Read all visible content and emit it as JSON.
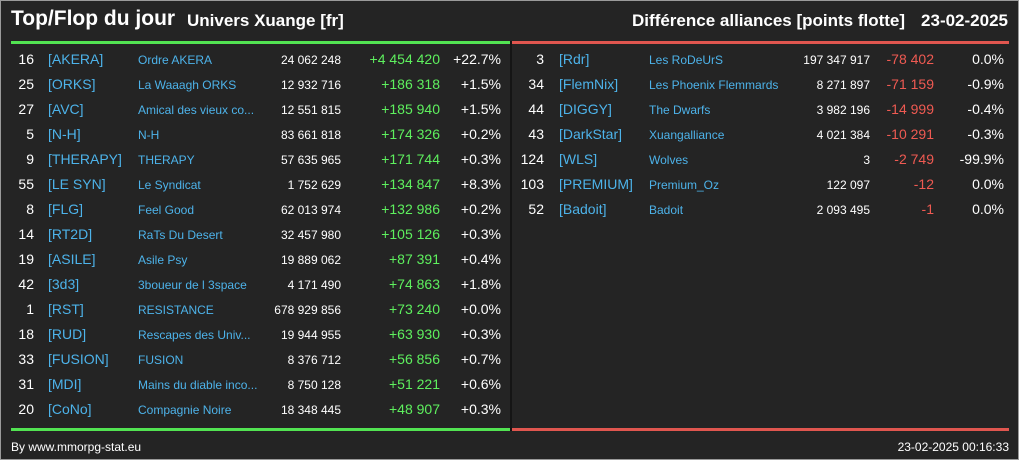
{
  "header": {
    "title": "Top/Flop du jour",
    "universe": "Univers Xuange [fr]",
    "subtitle": "Différence alliances [points flotte]",
    "date": "23-02-2025"
  },
  "top": [
    {
      "rank": "16",
      "tag": "[AKERA]",
      "name": "Ordre AKERA",
      "points": "24 062 248",
      "diff": "+4 454 420",
      "pct": "+22.7%"
    },
    {
      "rank": "25",
      "tag": "[ORKS]",
      "name": "La Waaagh ORKS",
      "points": "12 932 716",
      "diff": "+186 318",
      "pct": "+1.5%"
    },
    {
      "rank": "27",
      "tag": "[AVC]",
      "name": "Amical des vieux co...",
      "points": "12 551 815",
      "diff": "+185 940",
      "pct": "+1.5%"
    },
    {
      "rank": "5",
      "tag": "[N-H]",
      "name": "N-H",
      "points": "83 661 818",
      "diff": "+174 326",
      "pct": "+0.2%"
    },
    {
      "rank": "9",
      "tag": "[THERAPY]",
      "name": "THERAPY",
      "points": "57 635 965",
      "diff": "+171 744",
      "pct": "+0.3%"
    },
    {
      "rank": "55",
      "tag": "[LE SYN]",
      "name": "Le Syndicat",
      "points": "1 752 629",
      "diff": "+134 847",
      "pct": "+8.3%"
    },
    {
      "rank": "8",
      "tag": "[FLG]",
      "name": "Feel Good",
      "points": "62 013 974",
      "diff": "+132 986",
      "pct": "+0.2%"
    },
    {
      "rank": "14",
      "tag": "[RT2D]",
      "name": "RaTs Du Desert",
      "points": "32 457 980",
      "diff": "+105 126",
      "pct": "+0.3%"
    },
    {
      "rank": "19",
      "tag": "[ASILE]",
      "name": "Asile Psy",
      "points": "19 889 062",
      "diff": "+87 391",
      "pct": "+0.4%"
    },
    {
      "rank": "42",
      "tag": "[3d3]",
      "name": "3boueur de l 3space",
      "points": "4 171 490",
      "diff": "+74 863",
      "pct": "+1.8%"
    },
    {
      "rank": "1",
      "tag": "[RST]",
      "name": "RESISTANCE",
      "points": "678 929 856",
      "diff": "+73 240",
      "pct": "+0.0%"
    },
    {
      "rank": "18",
      "tag": "[RUD]",
      "name": "Rescapes des Univ...",
      "points": "19 944 955",
      "diff": "+63 930",
      "pct": "+0.3%"
    },
    {
      "rank": "33",
      "tag": "[FUSION]",
      "name": "FUSION",
      "points": "8 376 712",
      "diff": "+56 856",
      "pct": "+0.7%"
    },
    {
      "rank": "31",
      "tag": "[MDI]",
      "name": "Mains du diable inco...",
      "points": "8 750 128",
      "diff": "+51 221",
      "pct": "+0.6%"
    },
    {
      "rank": "20",
      "tag": "[CoNo]",
      "name": "Compagnie Noire",
      "points": "18 348 445",
      "diff": "+48 907",
      "pct": "+0.3%"
    }
  ],
  "flop": [
    {
      "rank": "3",
      "tag": "[Rdr]",
      "name": "Les RoDeUrS",
      "points": "197 347 917",
      "diff": "-78 402",
      "pct": "0.0%"
    },
    {
      "rank": "34",
      "tag": "[FlemNix]",
      "name": "Les Phoenix Flemmards",
      "points": "8 271 897",
      "diff": "-71 159",
      "pct": "-0.9%"
    },
    {
      "rank": "44",
      "tag": "[DIGGY]",
      "name": "The Dwarfs",
      "points": "3 982 196",
      "diff": "-14 999",
      "pct": "-0.4%"
    },
    {
      "rank": "43",
      "tag": "[DarkStar]",
      "name": "Xuangalliance",
      "points": "4 021 384",
      "diff": "-10 291",
      "pct": "-0.3%"
    },
    {
      "rank": "124",
      "tag": "[WLS]",
      "name": "Wolves",
      "points": "3",
      "diff": "-2 749",
      "pct": "-99.9%"
    },
    {
      "rank": "103",
      "tag": "[PREMIUM]",
      "name": "Premium_Oz",
      "points": "122 097",
      "diff": "-12",
      "pct": "0.0%"
    },
    {
      "rank": "52",
      "tag": "[Badoit]",
      "name": "Badoit",
      "points": "2 093 495",
      "diff": "-1",
      "pct": "0.0%"
    }
  ],
  "footer": {
    "credit": "By www.mmorpg-stat.eu",
    "timestamp": "23-02-2025 00:16:33"
  },
  "colors": {
    "background": "#242424",
    "positive": "#5ef05e",
    "negative": "#ef5a52",
    "link": "#4db3ea",
    "top_bar": "#52e352",
    "flop_bar": "#e0564f"
  }
}
